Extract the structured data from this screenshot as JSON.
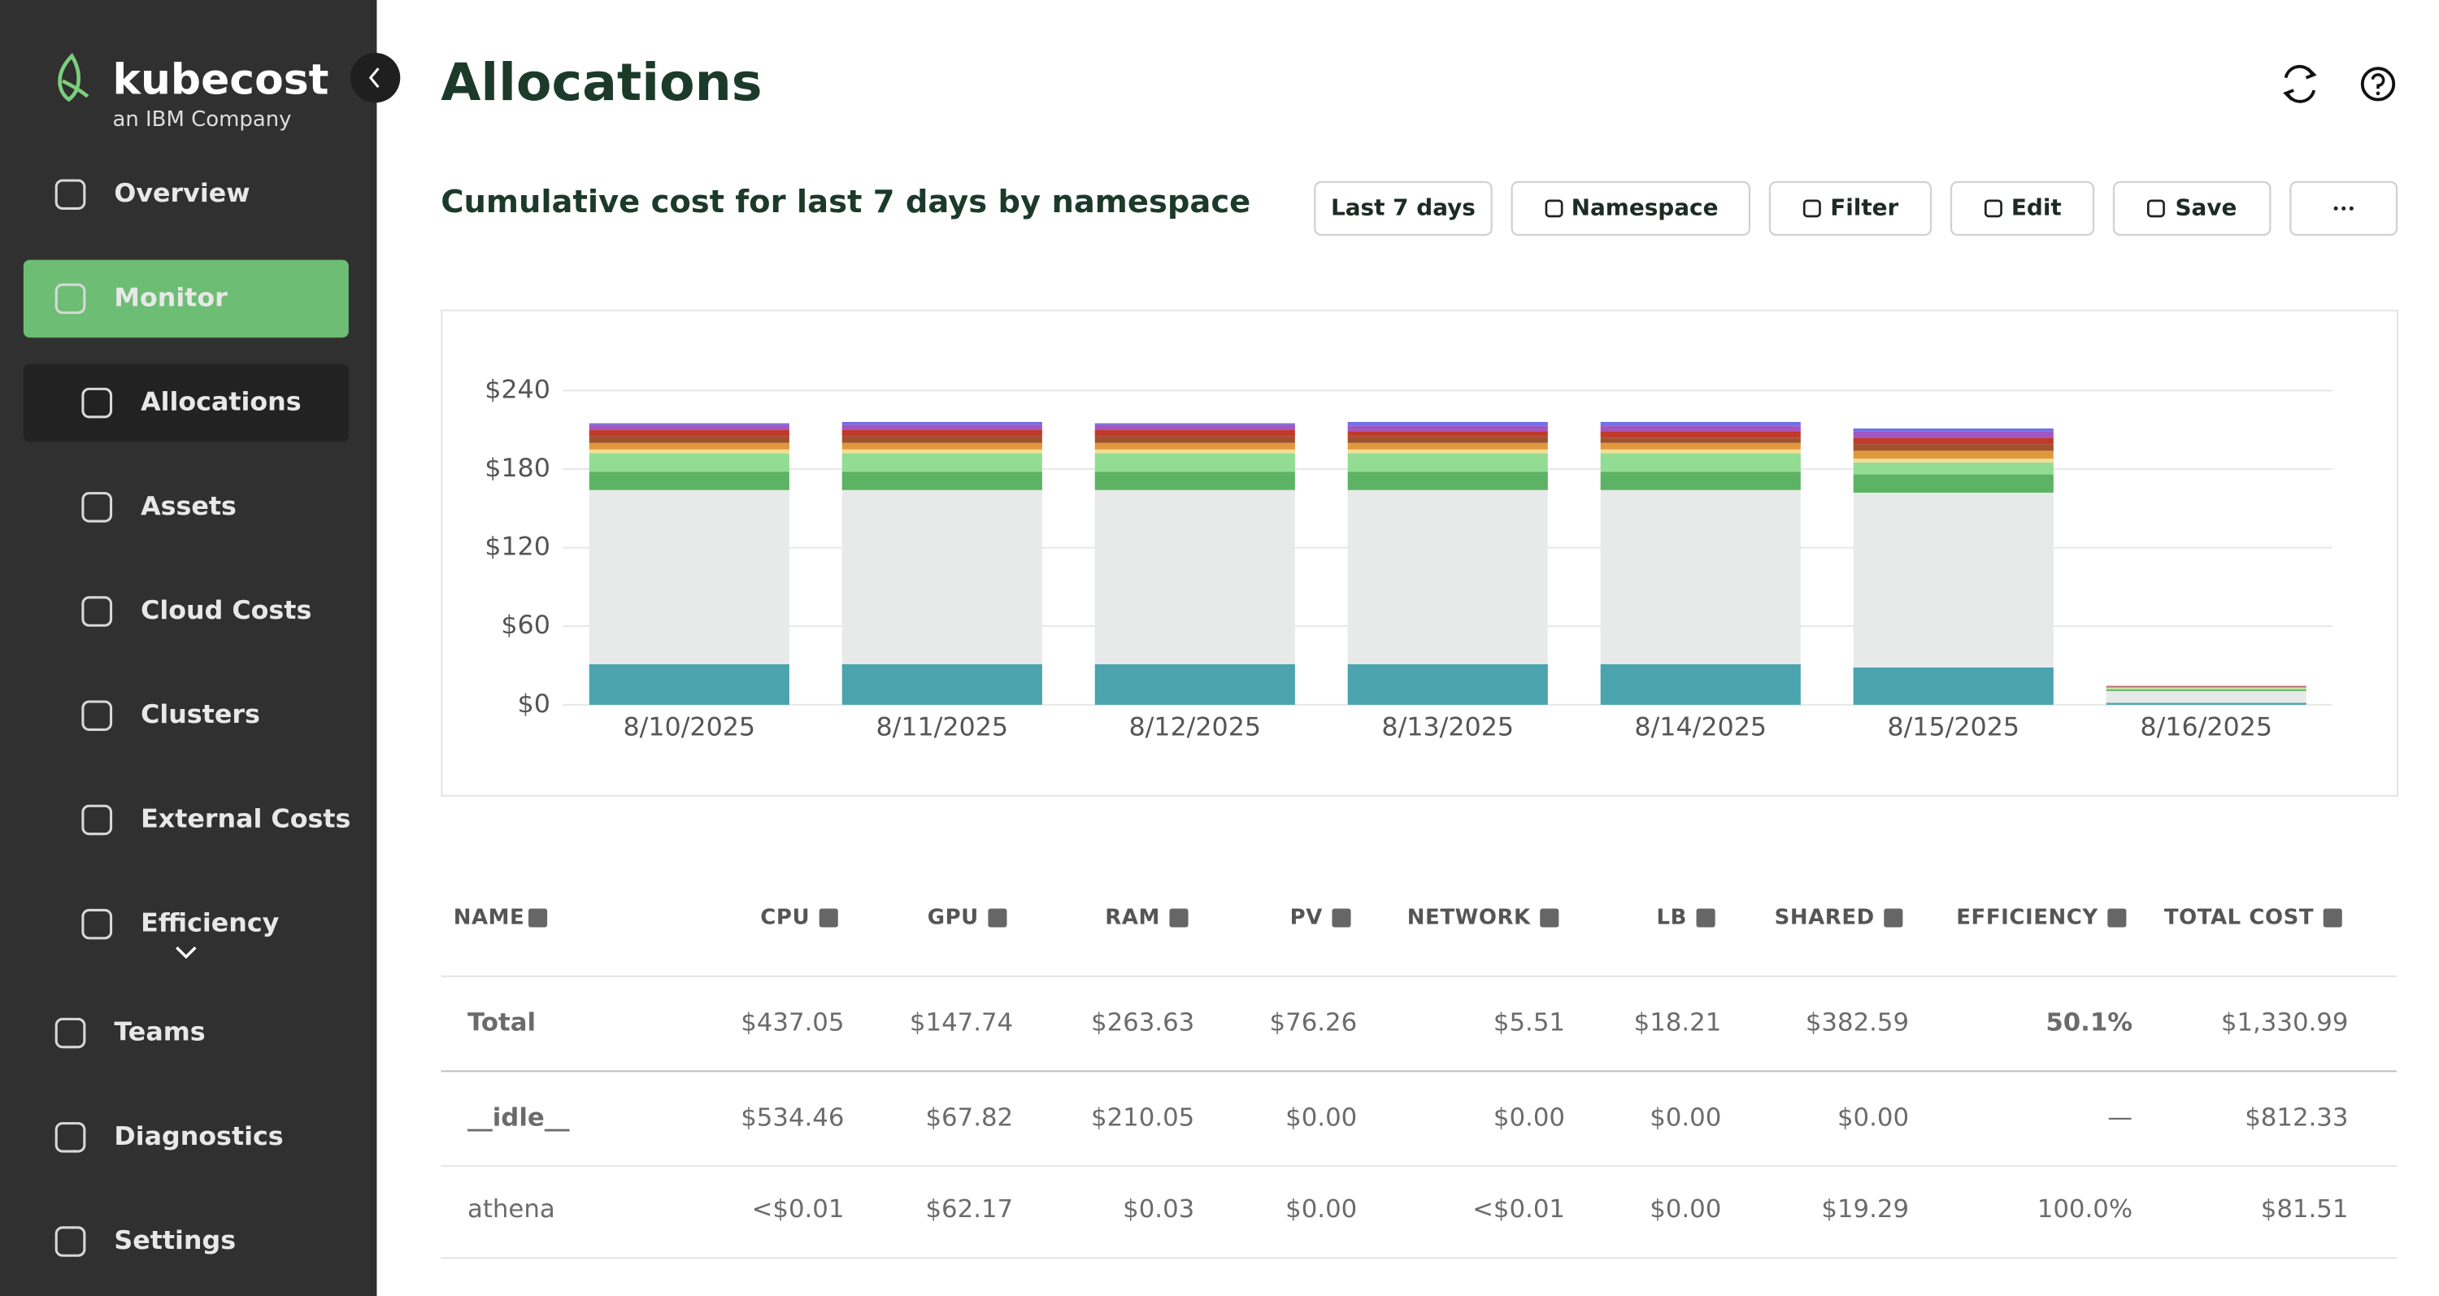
{
  "sidebar": {
    "brand": "kubecost",
    "tagline": "an IBM Company",
    "nav": [
      "Overview",
      "Monitor",
      "Allocations",
      "Assets",
      "Cloud Costs",
      "Clusters",
      "External Costs",
      "Efficiency",
      "Teams",
      "Diagnostics",
      "Settings"
    ]
  },
  "header": {
    "title": "Allocations"
  },
  "report": {
    "title": "Cumulative cost for last 7 days by namespace",
    "buttons": [
      "Last 7 days",
      "Namespace",
      "Filter",
      "Edit",
      "Save"
    ]
  },
  "chart_data": {
    "type": "stacked-bar",
    "categories": [
      "8/10/2025",
      "8/11/2025",
      "8/12/2025",
      "8/13/2025",
      "8/14/2025",
      "8/15/2025",
      "8/16/2025"
    ],
    "series": [
      {
        "color": "#4aa3ad",
        "values": [
          31,
          31,
          31,
          31,
          31,
          28.5,
          1.5
        ]
      },
      {
        "color": "#e8eae9",
        "values": [
          133,
          133,
          133,
          133,
          133,
          133.5,
          9
        ]
      },
      {
        "color": "#5cb363",
        "values": [
          14,
          14,
          14,
          14,
          14,
          14,
          1
        ]
      },
      {
        "color": "#93dc93",
        "values": [
          14,
          14,
          14,
          14,
          14,
          9,
          1
        ]
      },
      {
        "color": "#f2dd96",
        "values": [
          3,
          3,
          3,
          3,
          3,
          3,
          0.5
        ]
      },
      {
        "color": "#e0983c",
        "values": [
          5,
          5,
          5,
          5,
          5,
          6,
          0.5
        ]
      },
      {
        "color": "#a0522d",
        "values": [
          5,
          5,
          5,
          5,
          4,
          5,
          0.3
        ]
      },
      {
        "color": "#c0392b",
        "values": [
          5,
          5,
          5,
          4,
          5,
          5,
          0.3
        ]
      },
      {
        "color": "#a356c0",
        "values": [
          4,
          4,
          4,
          4,
          4,
          5,
          0.2
        ]
      },
      {
        "color": "#6c72e7",
        "values": [
          1,
          2,
          1,
          3,
          3,
          2,
          0.2
        ]
      }
    ],
    "ylim": [
      0,
      240
    ],
    "yticks": [
      {
        "value": 0,
        "label": "$0"
      },
      {
        "value": 60,
        "label": "$60"
      },
      {
        "value": 120,
        "label": "$120"
      },
      {
        "value": 180,
        "label": "$180"
      },
      {
        "value": 240,
        "label": "$240"
      }
    ],
    "grid": true
  },
  "table": {
    "columns": [
      "NAME",
      "CPU",
      "GPU",
      "RAM",
      "PV",
      "NETWORK",
      "LB",
      "SHARED",
      "EFFICIENCY",
      "TOTAL COST"
    ],
    "rows": [
      [
        "Total",
        "$437.05",
        "$147.74",
        "$263.63",
        "$76.26",
        "$5.51",
        "$18.21",
        "$382.59",
        "50.1%",
        "$1,330.99"
      ],
      [
        "__idle__",
        "$534.46",
        "$67.82",
        "$210.05",
        "$0.00",
        "$0.00",
        "$0.00",
        "$0.00",
        "—",
        "$812.33"
      ],
      [
        "athena",
        "<$0.01",
        "$62.17",
        "$0.03",
        "$0.00",
        "<$0.01",
        "$0.00",
        "$19.29",
        "100.0%",
        "$81.51"
      ]
    ]
  }
}
